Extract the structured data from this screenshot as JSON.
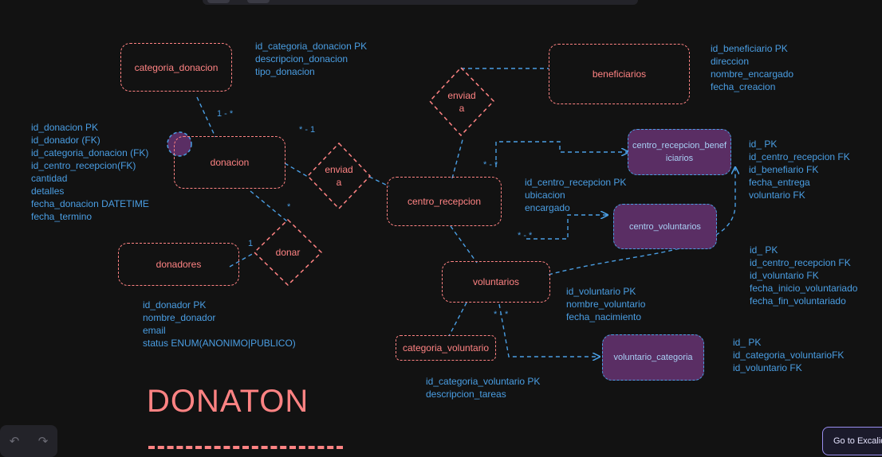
{
  "entities": {
    "categoria_donacion": "categoria_donacion",
    "donacion": "donacion",
    "donadores": "donadores",
    "beneficiarios": "beneficiarios",
    "centro_recepcion": "centro_recepcion",
    "voluntarios": "voluntarios",
    "categoria_voluntario": "categoria_voluntario",
    "centro_recepcion_beneficiarios": "centro_recepcion_beneficiarios",
    "centro_voluntarios": "centro_voluntarios",
    "voluntario_categoria": "voluntario_categoria"
  },
  "relations": {
    "enviada_donacion": [
      "enviad",
      "a"
    ],
    "enviada_beneficiarios": [
      "enviad",
      "a"
    ],
    "donar": "donar"
  },
  "attributes": {
    "categoria_donacion": [
      "id_categoria_donacion PK",
      "descripcion_donacion",
      "tipo_donacion"
    ],
    "donacion": [
      "id_donacion PK",
      "id_donador (FK)",
      "id_categoria_donacion (FK)",
      "id_centro_recepcion(FK)",
      "cantidad",
      "detalles",
      "fecha_donacion DATETIME",
      "fecha_termino"
    ],
    "donadores": [
      "id_donador PK",
      "nombre_donador",
      "email",
      "status ENUM(ANONIMO|PUBLICO)"
    ],
    "beneficiarios": [
      "id_beneficiario PK",
      "direccion",
      "nombre_encargado",
      "fecha_creacion"
    ],
    "centro_recepcion": [
      "id_centro_recepcion PK",
      "ubicacion",
      "encargado"
    ],
    "centro_recepcion_beneficiarios": [
      "id_ PK",
      "id_centro_recepcion FK",
      "id_benefiario FK",
      "fecha_entrega",
      "voluntario FK"
    ],
    "centro_voluntarios": [
      "id_ PK",
      "id_centro_recepcion FK",
      "id_voluntario FK",
      "fecha_inicio_voluntariado",
      "fecha_fin_voluntariado"
    ],
    "voluntarios": [
      "id_voluntario PK",
      "nombre_voluntario",
      "fecha_nacimiento"
    ],
    "categoria_voluntario": [
      "id_categoria_voluntario PK",
      "descripcion_tareas"
    ],
    "voluntario_categoria": [
      "id_ PK",
      "id_categoria_voluntarioFK",
      "id_voluntario FK"
    ]
  },
  "cardinalities": {
    "cat_donacion": "1 - *",
    "donacion_enviada": "* - 1",
    "donacion_donar": "*",
    "donadores_donar": "1",
    "centro_beneficiarios": "* - *",
    "centro_voluntarios": "* - *",
    "voluntario_categoria": "* - *"
  },
  "title": "DONATON",
  "ui": {
    "undo_icon": "↶",
    "redo_icon": "↷",
    "goto_label": "Go to Excalidraw+"
  },
  "colors": {
    "background": "#121212",
    "entity": "#ff8383",
    "association_fill": "#5a2e64",
    "link": "#4a9ee3"
  }
}
